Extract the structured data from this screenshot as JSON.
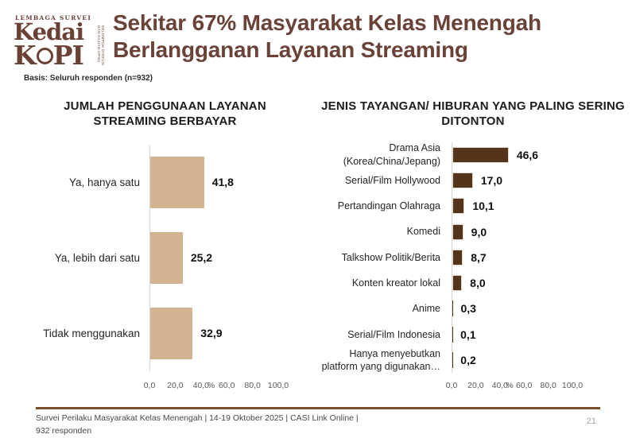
{
  "header": {
    "logo": {
      "tagline_top": "LEMBAGA SURVEI",
      "word1": "Kedai",
      "word2_left": "K",
      "word2_right": "PI",
      "tagline_side": "KELOMPOK DISKUSI DAN KAJIAN OPINI PUBLIK INDONESIA"
    },
    "title": "Sekitar 67% Masyarakat Kelas Menengah Berlangganan Layanan Streaming",
    "basis": "Basis: Seluruh responden (n=932)"
  },
  "chart_data": [
    {
      "type": "bar",
      "orientation": "horizontal",
      "title": "JUMLAH PENGGUNAAN LAYANAN STREAMING BERBAYAR",
      "title_lines": [
        "JUMLAH PENGGUNAAN LAYANAN",
        "STREAMING BERBAYAR"
      ],
      "categories": [
        "Ya, hanya satu",
        "Ya, lebih dari satu",
        "Tidak menggunakan"
      ],
      "values": [
        41.8,
        25.2,
        32.9
      ],
      "value_labels": [
        "41,8",
        "25,2",
        "32,9"
      ],
      "bar_color": "#d3b392",
      "bar_border": "",
      "xlim": [
        0,
        100
      ],
      "x_ticks": [
        "0,0",
        "20,0",
        "40,0",
        "60,0",
        "80,0",
        "100,0"
      ],
      "x_unit": "%",
      "grid": false,
      "value_label_position": "right"
    },
    {
      "type": "bar",
      "orientation": "horizontal",
      "title": "JENIS TAYANGAN/ HIBURAN YANG PALING SERING DITONTON",
      "title_lines": [
        "JENIS TAYANGAN/ HIBURAN YANG PALING SERING",
        "DITONTON"
      ],
      "categories": [
        "Drama Asia (Korea/China/Jepang)",
        "Serial/Film Hollywood",
        "Pertandingan Olahraga",
        "Komedi",
        "Talkshow Politik/Berita",
        "Konten kreator lokal",
        "Anime",
        "Serial/Film Indonesia",
        "Hanya menyebutkan platform yang digunakan…"
      ],
      "values": [
        46.6,
        17.0,
        10.1,
        9.0,
        8.7,
        8.0,
        0.3,
        0.1,
        0.2
      ],
      "value_labels": [
        "46,6",
        "17,0",
        "10,1",
        "9,0",
        "8,7",
        "8,0",
        "0,3",
        "0,1",
        "0,2"
      ],
      "bar_color": "#54341a",
      "bar_border": "#e5dbcb",
      "xlim": [
        0,
        100
      ],
      "x_ticks": [
        "0,0",
        "20,0",
        "40,0",
        "60,0",
        "80,0",
        "100,0"
      ],
      "x_unit": "%",
      "grid": false,
      "value_label_position": "right"
    }
  ],
  "footer": {
    "source_line1": "Survei Perilaku Masyarakat Kelas Menengah | 14-19 Oktober 2025 | CASI Link Online |",
    "source_line2": "932 responden",
    "page_number": "21"
  }
}
